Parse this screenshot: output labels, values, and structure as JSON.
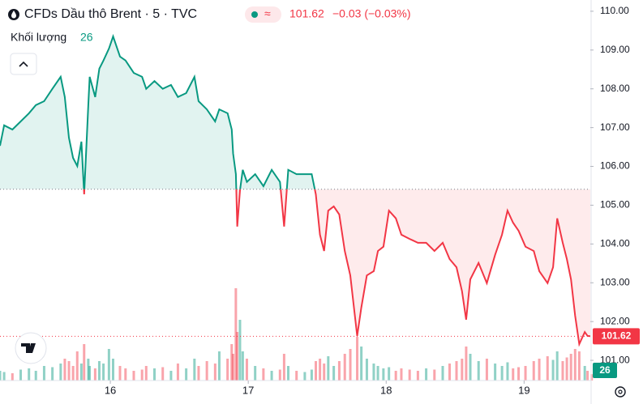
{
  "chart_data": {
    "type": "baseline-area",
    "title": "CFDs Dầu thô Brent · 5 · TVC",
    "last": 101.62,
    "change": "−0.03 (−0.03%)",
    "baseline": 105.41,
    "up_color": "#089981",
    "down_color": "#f23645",
    "x": [
      15.2,
      15.23,
      15.29,
      15.35,
      15.41,
      15.46,
      15.52,
      15.58,
      15.64,
      15.67,
      15.7,
      15.73,
      15.76,
      15.79,
      15.81,
      15.84,
      15.85,
      15.89,
      15.92,
      15.95,
      15.99,
      16.02,
      16.07,
      16.11,
      16.17,
      16.23,
      16.26,
      16.32,
      16.38,
      16.44,
      16.49,
      16.55,
      16.61,
      16.64,
      16.7,
      16.76,
      16.79,
      16.85,
      16.88,
      16.89,
      16.91,
      16.92,
      16.94,
      16.96,
      16.99,
      17.05,
      17.11,
      17.17,
      17.23,
      17.26,
      17.29,
      17.35,
      17.41,
      17.46,
      17.49,
      17.52,
      17.55,
      17.58,
      17.62,
      17.66,
      17.7,
      17.74,
      17.79,
      17.82,
      17.86,
      17.91,
      17.94,
      17.98,
      18.02,
      18.07,
      18.11,
      18.17,
      18.23,
      18.29,
      18.35,
      18.41,
      18.46,
      18.51,
      18.55,
      18.58,
      18.61,
      18.67,
      18.73,
      18.79,
      18.84,
      18.88,
      18.92,
      18.96,
      19.01,
      19.07,
      19.11,
      19.17,
      19.21,
      19.24,
      19.28,
      19.31,
      19.34,
      19.37,
      19.4,
      19.44,
      19.46,
      19.49
    ],
    "values": [
      106.53,
      107.06,
      106.95,
      107.16,
      107.37,
      107.58,
      107.68,
      108.0,
      108.31,
      107.79,
      106.74,
      106.22,
      106.01,
      106.64,
      105.28,
      107.58,
      108.31,
      107.79,
      108.52,
      108.73,
      109.04,
      109.35,
      108.83,
      108.73,
      108.41,
      108.31,
      108.0,
      108.2,
      108.0,
      108.1,
      107.79,
      107.89,
      108.31,
      107.68,
      107.47,
      107.16,
      107.47,
      107.37,
      106.95,
      106.33,
      105.8,
      104.45,
      105.39,
      105.91,
      105.6,
      105.8,
      105.49,
      105.91,
      105.6,
      104.45,
      105.91,
      105.8,
      105.8,
      105.8,
      105.28,
      104.24,
      103.82,
      104.86,
      104.97,
      104.76,
      103.82,
      103.19,
      101.63,
      102.36,
      103.19,
      103.3,
      103.82,
      103.93,
      104.86,
      104.66,
      104.24,
      104.13,
      104.03,
      104.03,
      103.82,
      104.03,
      103.61,
      103.4,
      102.78,
      102.05,
      103.09,
      103.51,
      102.99,
      103.72,
      104.24,
      104.86,
      104.55,
      104.34,
      103.93,
      103.82,
      103.3,
      102.99,
      103.4,
      104.66,
      104.03,
      103.61,
      103.09,
      102.15,
      101.42,
      101.73,
      101.63,
      101.62
    ],
    "xlim": [
      15.2,
      19.48
    ],
    "xticks": [
      16,
      17,
      18,
      19
    ],
    "ylim": [
      100.48,
      110.29
    ],
    "yticks": [
      {
        "value": 110,
        "label": "110.00"
      },
      {
        "value": 109,
        "label": "109.00"
      },
      {
        "value": 108,
        "label": "108.00"
      },
      {
        "value": 107,
        "label": "107.00"
      },
      {
        "value": 106,
        "label": "106.00"
      },
      {
        "value": 105,
        "label": "105.00"
      },
      {
        "value": 104,
        "label": "104.00"
      },
      {
        "value": 103,
        "label": "103.00"
      },
      {
        "value": 102,
        "label": "102.00"
      },
      {
        "value": 101,
        "label": "101.00"
      }
    ],
    "volume": {
      "label": "Khối lượng",
      "ylim": [
        0,
        400
      ],
      "values": [
        40,
        35,
        30,
        45,
        50,
        40,
        60,
        55,
        70,
        90,
        80,
        60,
        120,
        70,
        150,
        90,
        60,
        50,
        80,
        70,
        130,
        90,
        60,
        50,
        40,
        45,
        60,
        50,
        55,
        40,
        70,
        50,
        90,
        60,
        80,
        70,
        120,
        90,
        150,
        110,
        380,
        200,
        250,
        120,
        90,
        60,
        50,
        40,
        45,
        110,
        60,
        40,
        35,
        45,
        80,
        90,
        70,
        100,
        60,
        80,
        110,
        130,
        180,
        140,
        90,
        70,
        60,
        50,
        55,
        40,
        50,
        45,
        40,
        50,
        45,
        60,
        70,
        80,
        90,
        140,
        110,
        80,
        90,
        70,
        60,
        75,
        50,
        55,
        60,
        80,
        90,
        100,
        85,
        120,
        80,
        95,
        110,
        130,
        120,
        60,
        40,
        26
      ]
    }
  }
}
